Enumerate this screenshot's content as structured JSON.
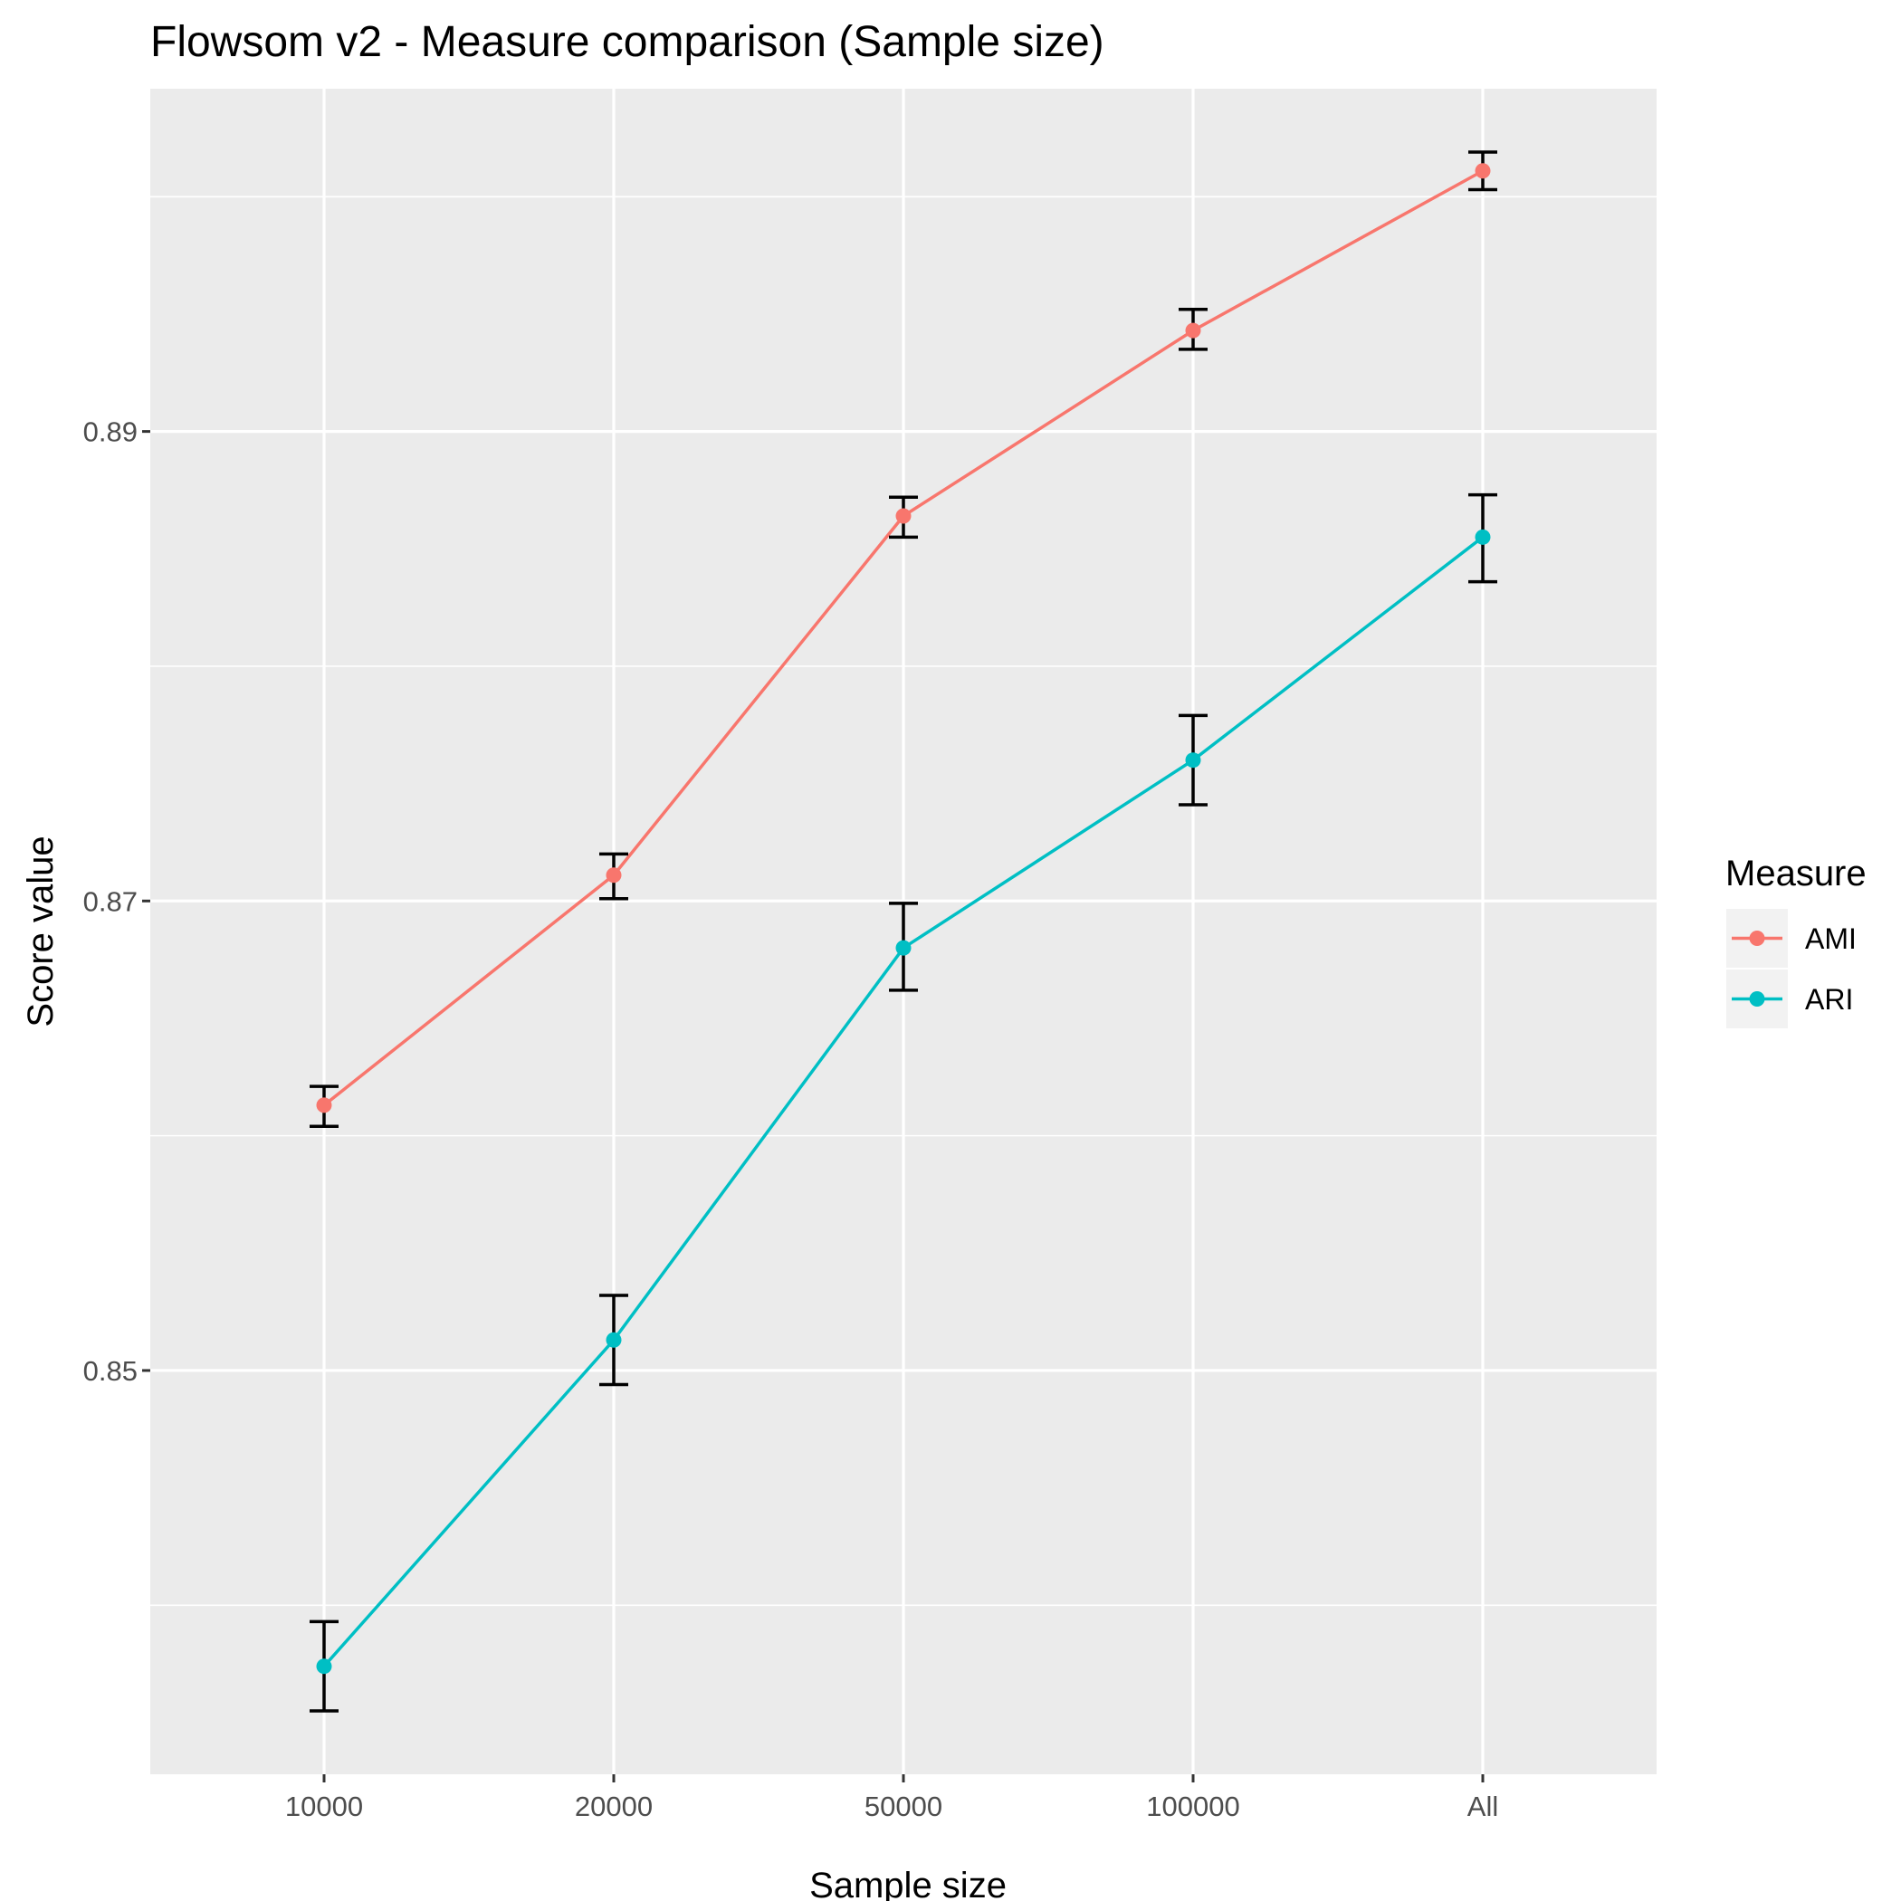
{
  "chart_data": {
    "type": "line",
    "title": "Flowsom v2 - Measure comparison (Sample size)",
    "xlabel": "Sample size",
    "ylabel": "Score value",
    "categories": [
      "10000",
      "20000",
      "50000",
      "100000",
      "All"
    ],
    "y_ticks": [
      0.85,
      0.87,
      0.89
    ],
    "y_tick_labels": [
      "0.85",
      "0.87",
      "0.89"
    ],
    "ylim": [
      0.8328,
      0.9046
    ],
    "grid": true,
    "legend": {
      "title": "Measure",
      "position": "right"
    },
    "series": [
      {
        "name": "AMI",
        "color": "#F8766D",
        "values": [
          0.8613,
          0.8711,
          0.8864,
          0.8943,
          0.9011
        ],
        "error_low": [
          0.8604,
          0.8701,
          0.8855,
          0.8935,
          0.9003
        ],
        "error_high": [
          0.8621,
          0.872,
          0.8872,
          0.8952,
          0.9019
        ]
      },
      {
        "name": "ARI",
        "color": "#00BFC4",
        "values": [
          0.8374,
          0.8513,
          0.868,
          0.876,
          0.8855
        ],
        "error_low": [
          0.8355,
          0.8494,
          0.8662,
          0.8741,
          0.8836
        ],
        "error_high": [
          0.8393,
          0.8532,
          0.8699,
          0.8779,
          0.8873
        ]
      }
    ]
  }
}
